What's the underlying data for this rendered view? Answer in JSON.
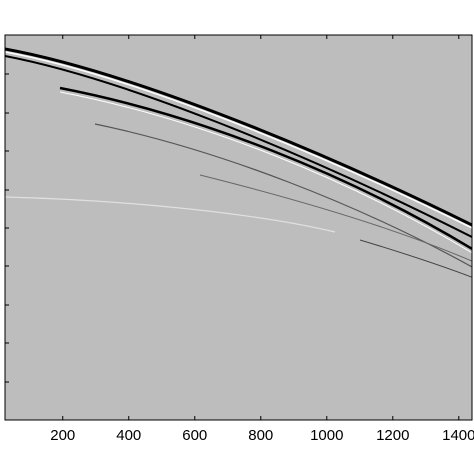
{
  "chart_data": {
    "type": "image",
    "xlim": [
      25,
      1440
    ],
    "xticks": [
      200,
      400,
      600,
      800,
      1000,
      1200,
      1400
    ]
  }
}
